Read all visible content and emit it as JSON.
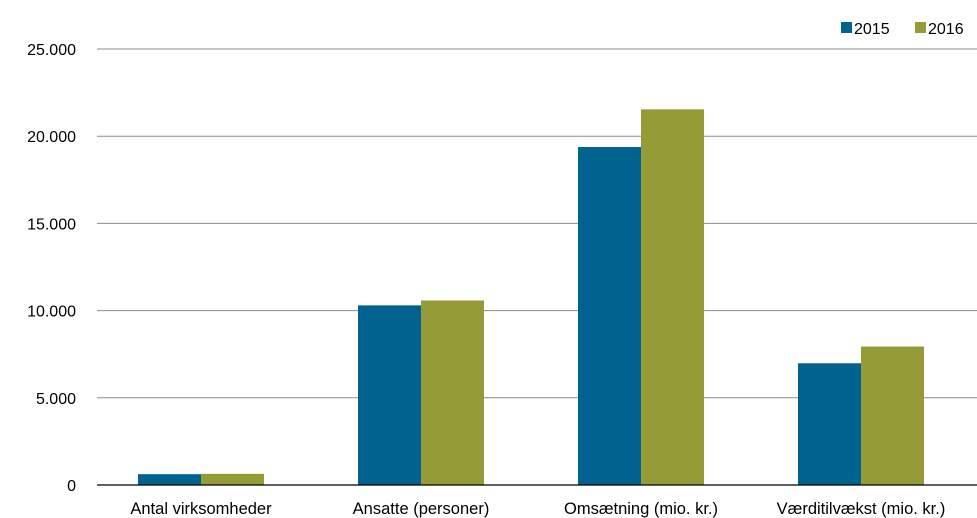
{
  "chart_data": {
    "type": "bar",
    "title": "",
    "xlabel": "",
    "ylabel": "",
    "categories": [
      "Antal virksomheder",
      "Ansatte (personer)",
      "Omsætning (mio. kr.)",
      "Værditilvækst (mio. kr.)"
    ],
    "series": [
      {
        "name": "2015",
        "color": "#00638f",
        "values": [
          620,
          10300,
          19380,
          6980
        ]
      },
      {
        "name": "2016",
        "color": "#959b37",
        "values": [
          640,
          10580,
          21540,
          7940
        ]
      }
    ],
    "ylim": [
      0,
      25000
    ],
    "yticks": [
      0,
      5000,
      10000,
      15000,
      20000,
      25000
    ],
    "ytick_labels": [
      "0",
      "5.000",
      "10.000",
      "15.000",
      "20.000",
      "25.000"
    ],
    "grid": true,
    "legend_position": "top-right"
  }
}
